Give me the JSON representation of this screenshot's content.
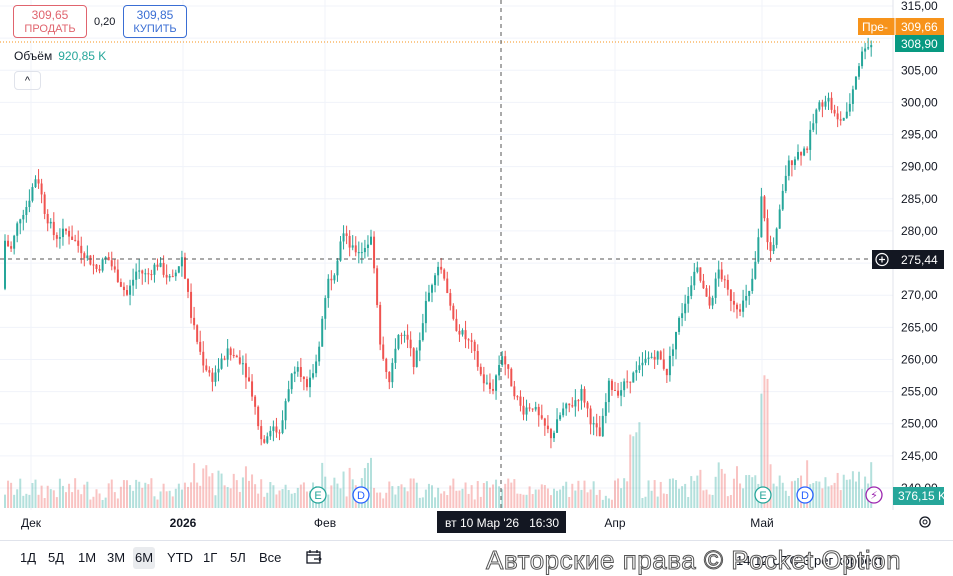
{
  "trade": {
    "sell_price": "309,65",
    "sell_label": "ПРОДАТЬ",
    "spread": "0,20",
    "buy_price": "309,85",
    "buy_label": "КУПИТЬ"
  },
  "volume_legend": {
    "label": "Объём",
    "value": "920,85 K"
  },
  "collapse_glyph": "^",
  "chart_data": {
    "type": "candlestick",
    "y_ticks": [
      "315,00",
      "310,00",
      "305,00",
      "300,00",
      "295,00",
      "290,00",
      "285,00",
      "280,00",
      "275,00",
      "270,00",
      "265,00",
      "260,00",
      "255,00",
      "250,00",
      "245,00",
      "240,00"
    ],
    "x_ticks": [
      "Дек",
      "2026",
      "Фев",
      "Апр",
      "Май"
    ],
    "ylim": [
      238.4,
      315.2
    ],
    "price_label_prefix": "Пре-",
    "premarket_price": "309,66",
    "last_price": "308,90",
    "crosshair_price": "275,44",
    "crosshair_time": "вт 10 Мар '26   16:30",
    "volume_current": "376,15 K",
    "event_markers": [
      "E",
      "D",
      "E",
      "D",
      "⚡"
    ],
    "price_anchors": [
      [
        0,
        271
      ],
      [
        6,
        279
      ],
      [
        14,
        277
      ],
      [
        22,
        282
      ],
      [
        30,
        284
      ],
      [
        40,
        289
      ],
      [
        48,
        283
      ],
      [
        58,
        279
      ],
      [
        70,
        280
      ],
      [
        85,
        277
      ],
      [
        100,
        274
      ],
      [
        110,
        276
      ],
      [
        120,
        273
      ],
      [
        130,
        270
      ],
      [
        140,
        274
      ],
      [
        150,
        273
      ],
      [
        160,
        275
      ],
      [
        175,
        272
      ],
      [
        185,
        276
      ],
      [
        195,
        266
      ],
      [
        205,
        260
      ],
      [
        215,
        257
      ],
      [
        230,
        261
      ],
      [
        245,
        260
      ],
      [
        255,
        255
      ],
      [
        265,
        247
      ],
      [
        275,
        250
      ],
      [
        283,
        248
      ],
      [
        290,
        255
      ],
      [
        300,
        260
      ],
      [
        310,
        255
      ],
      [
        320,
        260
      ],
      [
        330,
        272
      ],
      [
        338,
        274
      ],
      [
        345,
        280
      ],
      [
        355,
        277
      ],
      [
        365,
        277
      ],
      [
        375,
        279
      ],
      [
        383,
        263
      ],
      [
        393,
        256
      ],
      [
        400,
        264
      ],
      [
        410,
        263
      ],
      [
        418,
        259
      ],
      [
        428,
        268
      ],
      [
        440,
        275
      ],
      [
        448,
        273
      ],
      [
        455,
        266
      ],
      [
        465,
        264
      ],
      [
        475,
        262
      ],
      [
        485,
        257
      ],
      [
        495,
        255
      ],
      [
        505,
        261
      ],
      [
        515,
        256
      ],
      [
        525,
        252
      ],
      [
        535,
        253
      ],
      [
        545,
        250
      ],
      [
        555,
        248
      ],
      [
        565,
        252
      ],
      [
        575,
        253
      ],
      [
        585,
        255
      ],
      [
        595,
        250
      ],
      [
        603,
        248
      ],
      [
        612,
        256
      ],
      [
        622,
        255
      ],
      [
        632,
        257
      ],
      [
        640,
        258
      ],
      [
        650,
        260
      ],
      [
        660,
        261
      ],
      [
        670,
        258
      ],
      [
        680,
        265
      ],
      [
        690,
        270
      ],
      [
        700,
        274
      ],
      [
        712,
        268
      ],
      [
        722,
        274
      ],
      [
        732,
        270
      ],
      [
        742,
        268
      ],
      [
        752,
        270
      ],
      [
        760,
        276
      ],
      [
        765,
        286
      ],
      [
        772,
        276
      ],
      [
        780,
        280
      ],
      [
        790,
        290
      ],
      [
        800,
        292
      ],
      [
        810,
        293
      ],
      [
        820,
        299
      ],
      [
        830,
        301
      ],
      [
        840,
        297
      ],
      [
        850,
        298
      ],
      [
        860,
        305
      ],
      [
        868,
        309
      ],
      [
        873,
        309
      ]
    ]
  },
  "toolbar": {
    "tf1": "1Д",
    "tf2": "5Д",
    "tf3": "1М",
    "tf4": "3М",
    "tf5": "6М",
    "tf6": "YTD",
    "tf7": "1Г",
    "tf8": "5Л",
    "tf9": "Все",
    "calendar_icon": "calendar-range-icon",
    "copyright": "Авторские права © Pocket Option",
    "tail_text": "14:12 UTC-3   рег   коррект."
  },
  "colors": {
    "up": "#26a69a",
    "down": "#ef5350",
    "accent": "#2962ff",
    "premarket": "#f7931a",
    "last": "#089981"
  }
}
